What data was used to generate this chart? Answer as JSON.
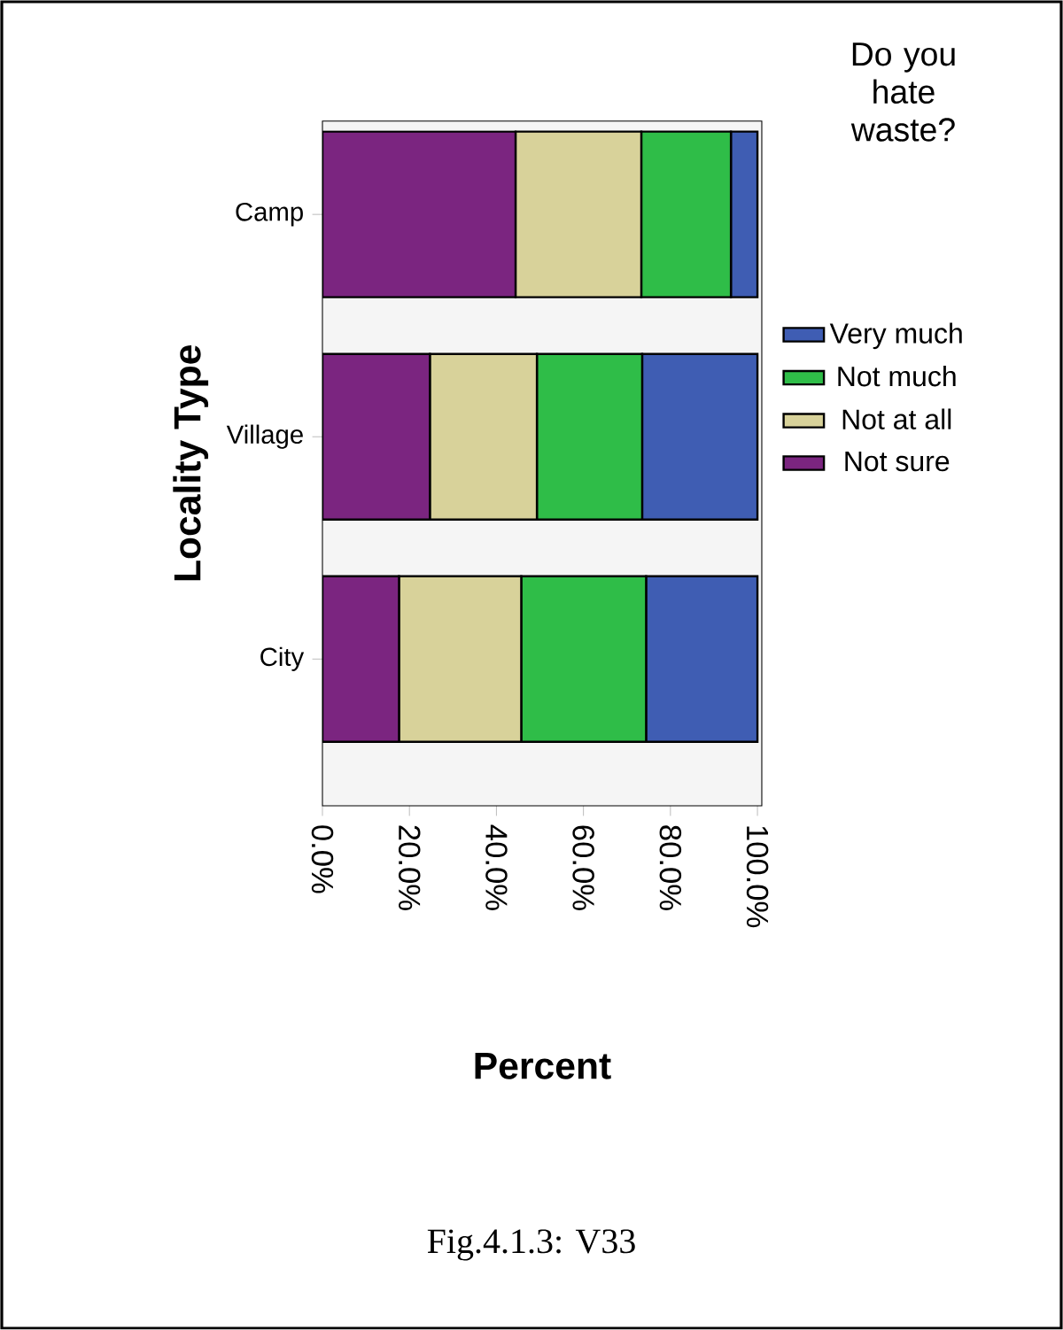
{
  "chart_data": {
    "type": "bar",
    "orientation": "horizontal",
    "stacked": true,
    "categories": [
      "Camp",
      "Village",
      "City"
    ],
    "series": [
      {
        "name": "Not sure",
        "color": "#7b2580",
        "values": [
          44.4,
          24.7,
          17.6
        ]
      },
      {
        "name": "Not at all",
        "color": "#d8d29a",
        "values": [
          28.9,
          24.6,
          28.1
        ]
      },
      {
        "name": "Not much",
        "color": "#2fbd48",
        "values": [
          20.6,
          24.2,
          28.7
        ]
      },
      {
        "name": "Very much",
        "color": "#3f5db3",
        "values": [
          6.1,
          26.5,
          25.6
        ]
      }
    ],
    "xlabel": "Percent",
    "ylabel": "Locality Type",
    "legend_title": "Do you hate waste?",
    "legend": "right",
    "xlim": [
      0,
      101
    ],
    "xticks": [
      {
        "value": 0,
        "label": "0.0%"
      },
      {
        "value": 20,
        "label": "20.0%"
      },
      {
        "value": 40,
        "label": "40.0%"
      },
      {
        "value": 60,
        "label": "60.0%"
      },
      {
        "value": 80,
        "label": "80.0%"
      },
      {
        "value": 100,
        "label": "100.0%"
      }
    ],
    "annotations": [
      "Fig.4.1.3: V33"
    ]
  }
}
